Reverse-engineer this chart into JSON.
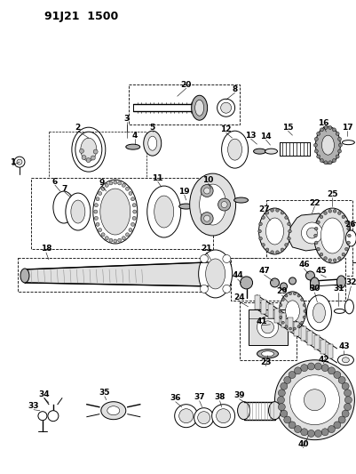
{
  "title": "91J21 1500",
  "bg_color": "#ffffff",
  "fig_w": 4.02,
  "fig_h": 5.33,
  "dpi": 100,
  "lw_thin": 0.4,
  "lw_med": 0.7,
  "lw_thick": 1.0,
  "lw_xthick": 1.5,
  "gray_light": "#e0e0e0",
  "gray_med": "#b0b0b0",
  "gray_dark": "#888888",
  "black": "#000000",
  "white": "#ffffff"
}
